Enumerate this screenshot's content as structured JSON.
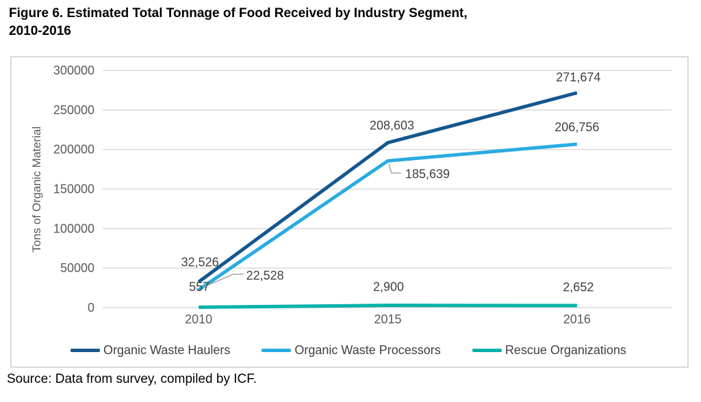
{
  "page": {
    "figure_title_lines": [
      "Figure 6. Estimated Total Tonnage of Food Received by Industry Segment,",
      "2010-2016"
    ],
    "source_note": "Source: Data from survey, compiled by ICF."
  },
  "chart_data": {
    "type": "line",
    "title": "Figure 6. Estimated Total Tonnage of Food Received by Industry Segment, 2010-2016",
    "categories": [
      "2010",
      "2015",
      "2016"
    ],
    "series": [
      {
        "name": "Organic Waste Haulers",
        "color": "#15578F",
        "values": [
          32526,
          208603,
          271674
        ],
        "labels": [
          "32,526",
          "208,603",
          "271,674"
        ]
      },
      {
        "name": "Organic Waste Processors",
        "color": "#29ABE2",
        "values": [
          22528,
          185639,
          206756
        ],
        "labels": [
          "22,528",
          "185,639",
          "206,756"
        ]
      },
      {
        "name": "Rescue Organizations",
        "color": "#00B2A9",
        "values": [
          557,
          2900,
          2652
        ],
        "labels": [
          "557",
          "2,900",
          "2,652"
        ]
      }
    ],
    "xlabel": "",
    "ylabel": "Tons of Organic Material",
    "ylim": [
      0,
      300000
    ],
    "ytick_step": 50000,
    "ytick_labels": [
      "0",
      "50000",
      "100000",
      "150000",
      "200000",
      "250000",
      "300000"
    ],
    "grid": true,
    "legend_position": "bottom",
    "data_labels": true,
    "style_colors": {
      "gridline": "#D9D9D9",
      "frame_border": "#D9D9D9",
      "axis_text": "#595959",
      "data_label_text": "#404040",
      "leader_line": "#A6A6A6"
    }
  }
}
